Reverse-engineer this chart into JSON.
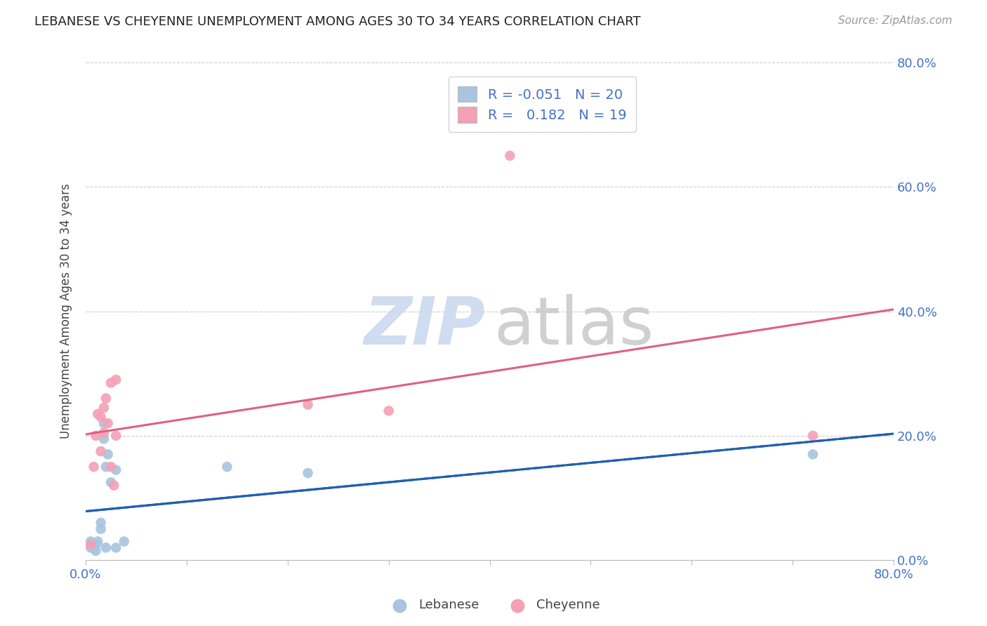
{
  "title": "LEBANESE VS CHEYENNE UNEMPLOYMENT AMONG AGES 30 TO 34 YEARS CORRELATION CHART",
  "source": "Source: ZipAtlas.com",
  "axis_color": "#4472c4",
  "ylabel": "Unemployment Among Ages 30 to 34 years",
  "xlim": [
    0.0,
    0.8
  ],
  "ylim": [
    0.0,
    0.8
  ],
  "legend_r_lebanese": "-0.051",
  "legend_n_lebanese": "20",
  "legend_r_cheyenne": "0.182",
  "legend_n_cheyenne": "19",
  "lebanese_color": "#a8c4e0",
  "cheyenne_color": "#f4a0b5",
  "lebanese_line_color": "#2060b0",
  "cheyenne_line_color": "#e06080",
  "lebanese_x": [
    0.005,
    0.005,
    0.008,
    0.01,
    0.01,
    0.012,
    0.015,
    0.015,
    0.018,
    0.018,
    0.02,
    0.02,
    0.022,
    0.025,
    0.03,
    0.03,
    0.038,
    0.14,
    0.22,
    0.72
  ],
  "lebanese_y": [
    0.02,
    0.03,
    0.02,
    0.015,
    0.025,
    0.03,
    0.05,
    0.06,
    0.195,
    0.22,
    0.02,
    0.15,
    0.17,
    0.125,
    0.02,
    0.145,
    0.03,
    0.15,
    0.14,
    0.17
  ],
  "cheyenne_x": [
    0.005,
    0.008,
    0.01,
    0.012,
    0.015,
    0.015,
    0.018,
    0.018,
    0.02,
    0.022,
    0.025,
    0.025,
    0.028,
    0.03,
    0.03,
    0.22,
    0.3,
    0.42,
    0.72
  ],
  "cheyenne_y": [
    0.025,
    0.15,
    0.2,
    0.235,
    0.175,
    0.23,
    0.205,
    0.245,
    0.26,
    0.22,
    0.15,
    0.285,
    0.12,
    0.2,
    0.29,
    0.25,
    0.24,
    0.65,
    0.2
  ],
  "marker_size": 110,
  "background_color": "#ffffff",
  "grid_color": "#cccccc",
  "watermark_zip_color": "#c8d8ee",
  "watermark_atlas_color": "#c8c8c8"
}
